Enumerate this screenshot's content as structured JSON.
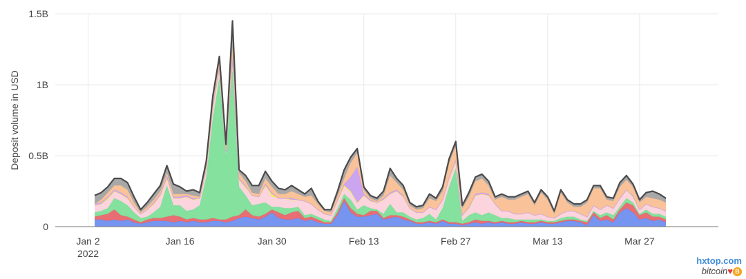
{
  "chart_data": {
    "type": "area",
    "stacked": true,
    "ylabel": "Deposit volume in USD",
    "y_ticks": [
      "0",
      "0.5B",
      "1B",
      "1.5B"
    ],
    "y_tick_values": [
      0,
      500000000,
      1000000000,
      1500000000
    ],
    "ylim": [
      0,
      1500000000
    ],
    "x_ticks": [
      {
        "label": "Jan 2",
        "sub": "2022",
        "date": "2022-01-02"
      },
      {
        "label": "Jan 16",
        "date": "2022-01-16"
      },
      {
        "label": "Jan 30",
        "date": "2022-01-30"
      },
      {
        "label": "Feb 13",
        "date": "2022-02-13"
      },
      {
        "label": "Feb 27",
        "date": "2022-02-27"
      },
      {
        "label": "Mar 13",
        "date": "2022-03-13"
      },
      {
        "label": "Mar 27",
        "date": "2022-03-27"
      }
    ],
    "xlim": [
      "2021-12-28",
      "2022-04-08"
    ],
    "x_start": "2022-01-03",
    "x_end": "2022-03-31",
    "grid": true,
    "legend": "none",
    "outline_color": "#4a4a4a",
    "series": [
      {
        "color": "#6f8ff0",
        "values": [
          0.05,
          0.05,
          0.04,
          0.05,
          0.04,
          0.05,
          0.03,
          0.02,
          0.03,
          0.04,
          0.04,
          0.04,
          0.03,
          0.04,
          0.03,
          0.04,
          0.03,
          0.03,
          0.04,
          0.04,
          0.03,
          0.04,
          0.06,
          0.07,
          0.06,
          0.05,
          0.07,
          0.1,
          0.06,
          0.05,
          0.05,
          0.06,
          0.04,
          0.05,
          0.03,
          0.02,
          0.02,
          0.08,
          0.18,
          0.1,
          0.07,
          0.07,
          0.08,
          0.09,
          0.05,
          0.06,
          0.07,
          0.05,
          0.04,
          0.02,
          0.02,
          0.03,
          0.02,
          0.04,
          0.02,
          0.02,
          0.01,
          0.02,
          0.03,
          0.02,
          0.03,
          0.02,
          0.03,
          0.02,
          0.02,
          0.03,
          0.02,
          0.02,
          0.03,
          0.02,
          0.02,
          0.03,
          0.04,
          0.04,
          0.03,
          0.01,
          0.08,
          0.04,
          0.05,
          0.03,
          0.1,
          0.13,
          0.1,
          0.05,
          0.06,
          0.04,
          0.05,
          0.03
        ]
      },
      {
        "color": "#e8666c",
        "values": [
          0.02,
          0.03,
          0.05,
          0.07,
          0.04,
          0.02,
          0.02,
          0.01,
          0.02,
          0.02,
          0.02,
          0.03,
          0.05,
          0.03,
          0.02,
          0.02,
          0.02,
          0.02,
          0.02,
          0.01,
          0.02,
          0.03,
          0.02,
          0.05,
          0.02,
          0.02,
          0.02,
          0.02,
          0.04,
          0.03,
          0.05,
          0.05,
          0.02,
          0.02,
          0.02,
          0.01,
          0.01,
          0.02,
          0.02,
          0.03,
          0.02,
          0.01,
          0.03,
          0.02,
          0.01,
          0.02,
          0.01,
          0.02,
          0.01,
          0.01,
          0.01,
          0.01,
          0.01,
          0.01,
          0.01,
          0.01,
          0.01,
          0.01,
          0.02,
          0.02,
          0.01,
          0.01,
          0.01,
          0.01,
          0.01,
          0.01,
          0.01,
          0.01,
          0.01,
          0.01,
          0.01,
          0.01,
          0.01,
          0.01,
          0.01,
          0.02,
          0.02,
          0.02,
          0.03,
          0.02,
          0.02,
          0.04,
          0.05,
          0.03,
          0.04,
          0.03,
          0.02,
          0.02
        ]
      },
      {
        "color": "#7ddf99",
        "values": [
          0.03,
          0.03,
          0.04,
          0.08,
          0.1,
          0.08,
          0.05,
          0.03,
          0.02,
          0.04,
          0.08,
          0.22,
          0.07,
          0.08,
          0.06,
          0.06,
          0.1,
          0.3,
          0.7,
          1.0,
          0.45,
          1.05,
          0.2,
          0.1,
          0.07,
          0.09,
          0.08,
          0.02,
          0.04,
          0.05,
          0.03,
          0.03,
          0.02,
          0.02,
          0.02,
          0.02,
          0.01,
          0.03,
          0.03,
          0.06,
          0.03,
          0.07,
          0.02,
          0.01,
          0.03,
          0.08,
          0.02,
          0.03,
          0.02,
          0.02,
          0.03,
          0.05,
          0.02,
          0.08,
          0.25,
          0.38,
          0.02,
          0.05,
          0.05,
          0.04,
          0.06,
          0.05,
          0.02,
          0.03,
          0.02,
          0.01,
          0.02,
          0.02,
          0.01,
          0.01,
          0.01,
          0.02,
          0.02,
          0.02,
          0.01,
          0.01,
          0.01,
          0.02,
          0.02,
          0.03,
          0.02,
          0.03,
          0.02,
          0.01,
          0.02,
          0.02,
          0.02,
          0.02
        ]
      },
      {
        "color": "#fbd2dc",
        "values": [
          0.05,
          0.05,
          0.06,
          0.05,
          0.05,
          0.05,
          0.04,
          0.03,
          0.05,
          0.06,
          0.08,
          0.05,
          0.05,
          0.05,
          0.1,
          0.07,
          0.05,
          0.06,
          0.08,
          0.06,
          0.03,
          0.06,
          0.05,
          0.05,
          0.07,
          0.05,
          0.12,
          0.07,
          0.06,
          0.07,
          0.06,
          0.05,
          0.1,
          0.07,
          0.05,
          0.04,
          0.04,
          0.05,
          0.05,
          0.05,
          0.05,
          0.07,
          0.05,
          0.05,
          0.1,
          0.07,
          0.15,
          0.11,
          0.06,
          0.05,
          0.04,
          0.05,
          0.07,
          0.06,
          0.06,
          0.05,
          0.04,
          0.05,
          0.12,
          0.15,
          0.12,
          0.08,
          0.05,
          0.05,
          0.04,
          0.04,
          0.05,
          0.03,
          0.04,
          0.03,
          0.02,
          0.03,
          0.04,
          0.04,
          0.04,
          0.03,
          0.04,
          0.04,
          0.05,
          0.05,
          0.06,
          0.06,
          0.04,
          0.03,
          0.04,
          0.05,
          0.04,
          0.04
        ]
      },
      {
        "color": "#f2e95e",
        "values": [
          0.0,
          0.0,
          0.01,
          0.0,
          0.0,
          0.0,
          0.0,
          0.0,
          0.0,
          0.0,
          0.0,
          0.0,
          0.0,
          0.0,
          0.0,
          0.0,
          0.0,
          0.0,
          0.0,
          0.01,
          0.0,
          0.0,
          0.0,
          0.01,
          0.0,
          0.0,
          0.0,
          0.02,
          0.0,
          0.0,
          0.0,
          0.0,
          0.0,
          0.0,
          0.0,
          0.0,
          0.0,
          0.0,
          0.01,
          0.01,
          0.0,
          0.0,
          0.0,
          0.0,
          0.0,
          0.0,
          0.0,
          0.0,
          0.0,
          0.0,
          0.0,
          0.0,
          0.0,
          0.0,
          0.0,
          0.0,
          0.0,
          0.0,
          0.0,
          0.0,
          0.0,
          0.0,
          0.0,
          0.0,
          0.0,
          0.0,
          0.0,
          0.0,
          0.0,
          0.0,
          0.0,
          0.0,
          0.0,
          0.0,
          0.0,
          0.0,
          0.0,
          0.0,
          0.0,
          0.0,
          0.0,
          0.0,
          0.0,
          0.0,
          0.0,
          0.0,
          0.0,
          0.0
        ]
      },
      {
        "color": "#c9a0f0",
        "values": [
          0.01,
          0.01,
          0.01,
          0.01,
          0.01,
          0.01,
          0.0,
          0.0,
          0.0,
          0.01,
          0.01,
          0.02,
          0.01,
          0.01,
          0.01,
          0.01,
          0.0,
          0.0,
          0.01,
          0.01,
          0.0,
          0.01,
          0.01,
          0.01,
          0.0,
          0.0,
          0.01,
          0.01,
          0.0,
          0.0,
          0.01,
          0.0,
          0.0,
          0.0,
          0.0,
          0.0,
          0.0,
          0.01,
          0.01,
          0.1,
          0.25,
          0.01,
          0.01,
          0.0,
          0.01,
          0.01,
          0.01,
          0.01,
          0.0,
          0.0,
          0.0,
          0.0,
          0.0,
          0.0,
          0.01,
          0.01,
          0.0,
          0.01,
          0.01,
          0.01,
          0.01,
          0.0,
          0.0,
          0.0,
          0.0,
          0.0,
          0.0,
          0.0,
          0.0,
          0.0,
          0.0,
          0.0,
          0.0,
          0.0,
          0.0,
          0.0,
          0.0,
          0.0,
          0.0,
          0.0,
          0.0,
          0.0,
          0.01,
          0.0,
          0.0,
          0.0,
          0.0,
          0.0
        ]
      },
      {
        "color": "#f9bf94",
        "values": [
          0.0,
          0.02,
          0.03,
          0.03,
          0.05,
          0.05,
          0.03,
          0.01,
          0.02,
          0.02,
          0.02,
          0.02,
          0.02,
          0.02,
          0.01,
          0.02,
          0.01,
          0.01,
          0.02,
          0.03,
          0.02,
          0.08,
          0.04,
          0.03,
          0.02,
          0.02,
          0.04,
          0.04,
          0.03,
          0.03,
          0.05,
          0.04,
          0.03,
          0.06,
          0.04,
          0.02,
          0.02,
          0.03,
          0.04,
          0.1,
          0.1,
          0.03,
          0.01,
          0.01,
          0.02,
          0.12,
          0.05,
          0.04,
          0.02,
          0.02,
          0.03,
          0.06,
          0.06,
          0.06,
          0.1,
          0.1,
          0.05,
          0.07,
          0.09,
          0.1,
          0.06,
          0.03,
          0.1,
          0.08,
          0.1,
          0.12,
          0.13,
          0.07,
          0.15,
          0.12,
          0.03,
          0.15,
          0.06,
          0.03,
          0.05,
          0.1,
          0.12,
          0.15,
          0.04,
          0.05,
          0.08,
          0.07,
          0.06,
          0.05,
          0.05,
          0.06,
          0.06,
          0.06
        ]
      },
      {
        "color": "#a3a3a3",
        "values": [
          0.06,
          0.05,
          0.04,
          0.05,
          0.05,
          0.05,
          0.04,
          0.02,
          0.03,
          0.04,
          0.04,
          0.05,
          0.07,
          0.05,
          0.02,
          0.04,
          0.03,
          0.04,
          0.05,
          0.04,
          0.03,
          0.18,
          0.02,
          0.04,
          0.05,
          0.06,
          0.05,
          0.04,
          0.04,
          0.03,
          0.04,
          0.03,
          0.02,
          0.05,
          0.02,
          0.01,
          0.02,
          0.03,
          0.06,
          0.04,
          0.03,
          0.02,
          0.02,
          0.02,
          0.03,
          0.05,
          0.03,
          0.03,
          0.02,
          0.02,
          0.02,
          0.03,
          0.02,
          0.03,
          0.03,
          0.03,
          0.02,
          0.03,
          0.03,
          0.03,
          0.03,
          0.02,
          0.02,
          0.02,
          0.02,
          0.02,
          0.02,
          0.02,
          0.02,
          0.02,
          0.02,
          0.02,
          0.02,
          0.02,
          0.02,
          0.02,
          0.02,
          0.02,
          0.02,
          0.02,
          0.03,
          0.03,
          0.02,
          0.02,
          0.03,
          0.05,
          0.04,
          0.03
        ]
      }
    ]
  },
  "watermark": {
    "site": "hxtop.com",
    "brand": "bitcoin",
    "heart": "♥",
    "coin_glyph": "B"
  }
}
